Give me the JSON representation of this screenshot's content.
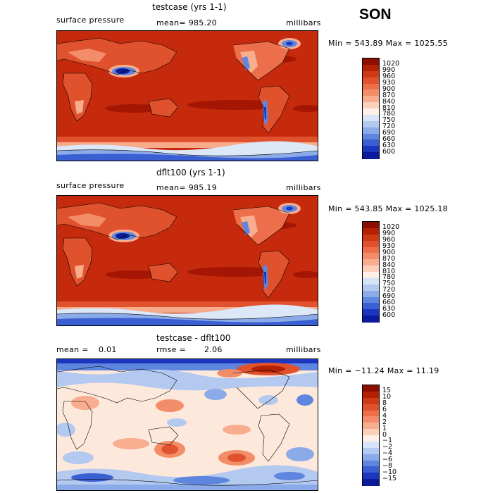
{
  "season": "SON",
  "panels": [
    {
      "title": "testcase (yrs 1-1)",
      "left_label": "surface pressure",
      "center_label": "mean= 985.20",
      "units": "millibars",
      "minmax": "Min = 543.89 Max = 1025.55",
      "colorbar": {
        "labels": [
          "1020",
          "990",
          "960",
          "930",
          "900",
          "870",
          "840",
          "810",
          "780",
          "750",
          "720",
          "690",
          "660",
          "630",
          "600"
        ],
        "colors": [
          "#8b0e00",
          "#b32004",
          "#cf3a15",
          "#e0522e",
          "#ec6e4a",
          "#f38d69",
          "#f8ad8e",
          "#fbd0bb",
          "#fdf0e6",
          "#d7e3f6",
          "#b3c9f0",
          "#8aaae8",
          "#5f86de",
          "#3a5fd2",
          "#1c36c0",
          "#0a1a9a"
        ]
      }
    },
    {
      "title": "dflt100 (yrs 1-1)",
      "left_label": "surface pressure",
      "center_label": "mean= 985.19",
      "units": "millibars",
      "minmax": "Min = 543.85 Max = 1025.18",
      "colorbar": {
        "labels": [
          "1020",
          "990",
          "960",
          "930",
          "900",
          "870",
          "840",
          "810",
          "780",
          "750",
          "720",
          "690",
          "660",
          "630",
          "600"
        ],
        "colors": [
          "#8b0e00",
          "#b32004",
          "#cf3a15",
          "#e0522e",
          "#ec6e4a",
          "#f38d69",
          "#f8ad8e",
          "#fbd0bb",
          "#fdf0e6",
          "#d7e3f6",
          "#b3c9f0",
          "#8aaae8",
          "#5f86de",
          "#3a5fd2",
          "#1c36c0",
          "#0a1a9a"
        ]
      }
    },
    {
      "title": "testcase - dflt100",
      "mean_label": "mean =",
      "mean_value": "0.01",
      "rmse_label": "rmse =",
      "rmse_value": "2.06",
      "units": "millibars",
      "minmax": "Min = −11.24 Max = 11.19",
      "colorbar": {
        "labels": [
          "15",
          "10",
          "8",
          "6",
          "4",
          "2",
          "1",
          "0",
          "−1",
          "−2",
          "−4",
          "−6",
          "−8",
          "−10",
          "−15"
        ],
        "colors": [
          "#8b0e00",
          "#b32004",
          "#cf3a15",
          "#e0522e",
          "#ec6e4a",
          "#f38d69",
          "#f8ad8e",
          "#fbd0bb",
          "#fdf0e6",
          "#d7e3f6",
          "#b3c9f0",
          "#8aaae8",
          "#5f86de",
          "#3a5fd2",
          "#1c36c0",
          "#0a1a9a"
        ]
      }
    }
  ]
}
